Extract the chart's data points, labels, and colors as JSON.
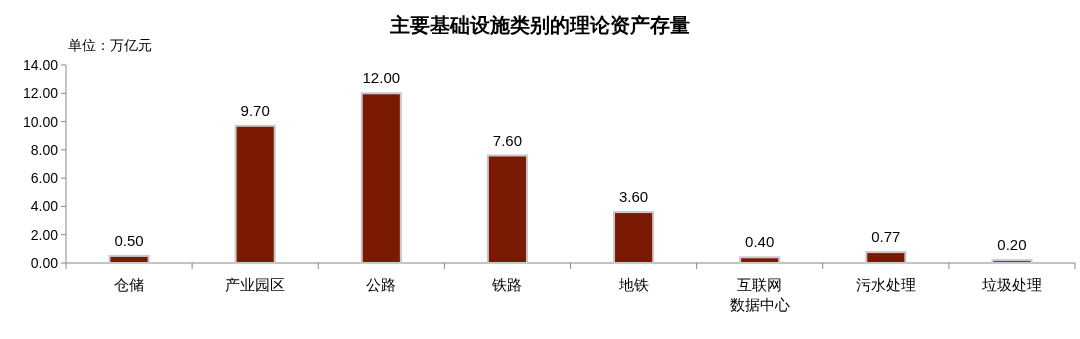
{
  "chart_data": {
    "type": "bar",
    "title": "主要基础设施类别的理论资产存量",
    "annotations": [
      "单位：万亿元"
    ],
    "categories": [
      "仓储",
      "产业园区",
      "公路",
      "铁路",
      "地铁",
      "互联网数据中心",
      "污水处理",
      "垃圾处理"
    ],
    "values": [
      0.5,
      9.7,
      12.0,
      7.6,
      3.6,
      0.4,
      0.77,
      0.2
    ],
    "value_labels": [
      "0.50",
      "9.70",
      "12.00",
      "7.60",
      "3.60",
      "0.40",
      "0.77",
      "0.20"
    ],
    "color": "#7a1a05",
    "ylim": [
      0,
      14
    ],
    "yticks": [
      {
        "value": 0,
        "label": "0.00"
      },
      {
        "value": 2,
        "label": "2.00"
      },
      {
        "value": 4,
        "label": "4.00"
      },
      {
        "value": 6,
        "label": "6.00"
      },
      {
        "value": 8,
        "label": "8.00"
      },
      {
        "value": 10,
        "label": "10.00"
      },
      {
        "value": 12,
        "label": "12.00"
      },
      {
        "value": 14,
        "label": "14.00"
      }
    ],
    "grid": false
  }
}
